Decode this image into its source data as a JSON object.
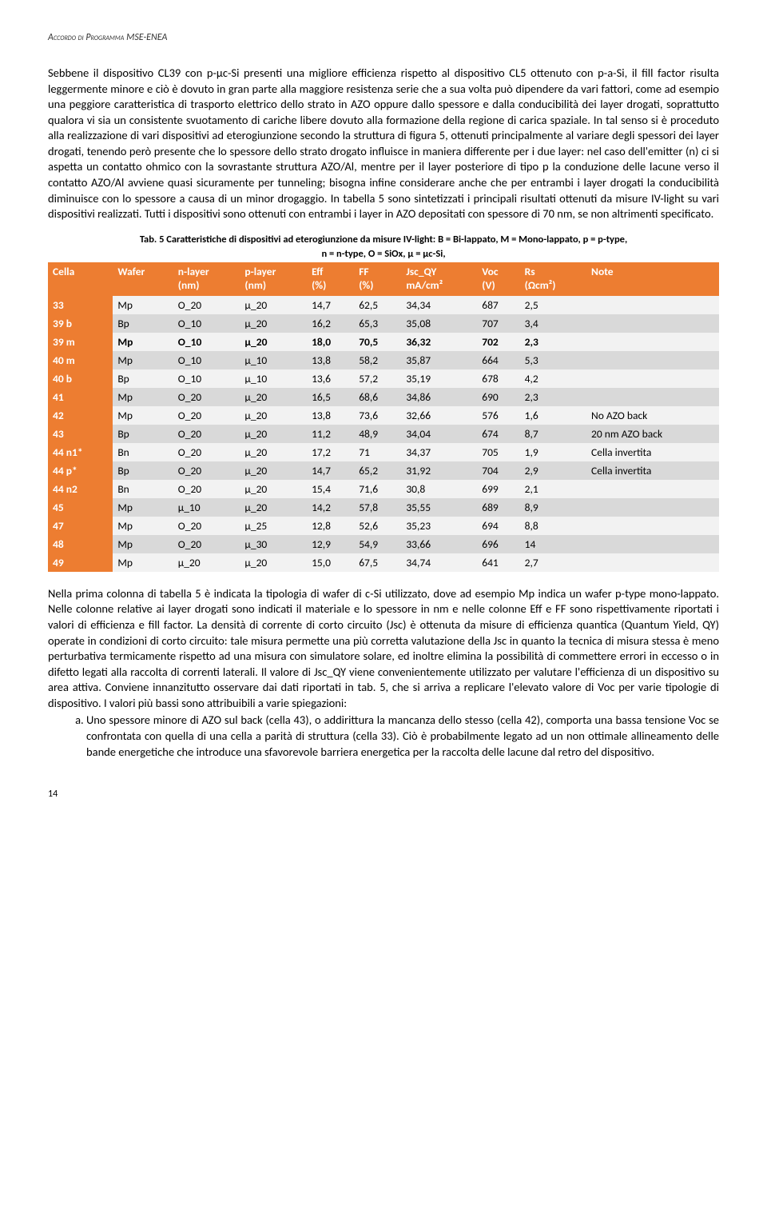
{
  "header": "Accordo di Programma MSE-ENEA",
  "para1": "Sebbene il dispositivo CL39 con p-μc-Si presenti una migliore efficienza rispetto al dispositivo CL5 ottenuto con p-a-Si, il fill factor risulta leggermente minore e ciò è dovuto in gran parte alla maggiore resistenza serie che a sua volta può dipendere da vari fattori, come ad esempio una peggiore caratteristica di trasporto elettrico dello strato in AZO oppure dallo spessore e dalla conducibilità dei layer drogati, soprattutto qualora vi sia un consistente svuotamento di cariche libere dovuto alla formazione della regione di carica spaziale. In tal senso si è proceduto alla realizzazione di vari dispositivi ad eterogiunzione secondo la struttura di figura 5, ottenuti principalmente al variare degli spessori dei layer drogati, tenendo però presente che lo spessore dello strato drogato influisce in maniera differente per i due layer: nel caso dell'emitter (n) ci si aspetta un contatto ohmico con la sovrastante struttura AZO/Al, mentre per il layer posteriore di tipo p la conduzione delle lacune verso il contatto AZO/Al avviene quasi sicuramente per tunneling; bisogna infine considerare anche che per entrambi i layer drogati la conducibilità diminuisce con lo spessore a causa di un minor drogaggio. In tabella 5 sono sintetizzati i principali risultati ottenuti da misure IV-light su vari dispositivi realizzati. Tutti i dispositivi sono ottenuti con entrambi i layer in AZO depositati con spessore di 70 nm, se non altrimenti specificato.",
  "tableCaption1": "Tab. 5 Caratteristiche di dispositivi ad eterogiunzione da misure IV-light: B = Bi-lappato, M = Mono-lappato, p = p-type,",
  "tableCaption2": "n = n-type, O = SiOx, μ = μc-Si,",
  "table": {
    "headerBg": "#ed7d31",
    "stripeLight": "#f2f2f2",
    "stripeDark": "#d9d9d9",
    "columns": [
      "Cella",
      "Wafer",
      "n-layer\n(nm)",
      "p-layer\n(nm)",
      "Eff\n(%)",
      "FF\n(%)",
      "Jsc_QY\nmA/cm²",
      "Voc\n(V)",
      "Rs\n(Ωcm²)",
      "Note"
    ],
    "colHeaders": [
      {
        "l1": "Cella",
        "l2": ""
      },
      {
        "l1": "Wafer",
        "l2": ""
      },
      {
        "l1": "n-layer",
        "l2": "(nm)"
      },
      {
        "l1": "p-layer",
        "l2": "(nm)"
      },
      {
        "l1": "Eff",
        "l2": "(%)"
      },
      {
        "l1": "FF",
        "l2": "(%)"
      },
      {
        "l1": "Jsc_QY",
        "l2": "mA/cm²"
      },
      {
        "l1": "Voc",
        "l2": "(V)"
      },
      {
        "l1": "Rs",
        "l2": "(Ωcm²)"
      },
      {
        "l1": "Note",
        "l2": ""
      }
    ],
    "rows": [
      {
        "cells": [
          "33",
          "Mp",
          "O_20",
          "μ_20",
          "14,7",
          "62,5",
          "34,34",
          "687",
          "2,5",
          ""
        ],
        "bold": false
      },
      {
        "cells": [
          "39 b",
          "Bp",
          "O_10",
          "μ_20",
          "16,2",
          "65,3",
          "35,08",
          "707",
          "3,4",
          ""
        ],
        "bold": false
      },
      {
        "cells": [
          "39 m",
          "Mp",
          "O_10",
          "μ_20",
          "18,0",
          "70,5",
          "36,32",
          "702",
          "2,3",
          ""
        ],
        "bold": true
      },
      {
        "cells": [
          "40 m",
          "Mp",
          "O_10",
          "μ_10",
          "13,8",
          "58,2",
          "35,87",
          "664",
          "5,3",
          ""
        ],
        "bold": false
      },
      {
        "cells": [
          "40 b",
          "Bp",
          "O_10",
          "μ_10",
          "13,6",
          "57,2",
          "35,19",
          "678",
          "4,2",
          ""
        ],
        "bold": false
      },
      {
        "cells": [
          "41",
          "Mp",
          "O_20",
          "μ_20",
          "16,5",
          "68,6",
          "34,86",
          "690",
          "2,3",
          ""
        ],
        "bold": false
      },
      {
        "cells": [
          "42",
          "Mp",
          "O_20",
          "μ_20",
          "13,8",
          "73,6",
          "32,66",
          "576",
          "1,6",
          "No AZO back"
        ],
        "bold": false
      },
      {
        "cells": [
          "43",
          "Bp",
          "O_20",
          "μ_20",
          "11,2",
          "48,9",
          "34,04",
          "674",
          "8,7",
          "20 nm AZO back"
        ],
        "bold": false
      },
      {
        "cells": [
          "44 n1*",
          "Bn",
          "O_20",
          "μ_20",
          "17,2",
          "71",
          "34,37",
          "705",
          "1,9",
          "Cella invertita"
        ],
        "bold": false
      },
      {
        "cells": [
          "44 p*",
          "Bp",
          "O_20",
          "μ_20",
          "14,7",
          "65,2",
          "31,92",
          "704",
          "2,9",
          "Cella invertita"
        ],
        "bold": false
      },
      {
        "cells": [
          "44 n2",
          "Bn",
          "O_20",
          "μ_20",
          "15,4",
          "71,6",
          "30,8",
          "699",
          "2,1",
          ""
        ],
        "bold": false
      },
      {
        "cells": [
          "45",
          "Mp",
          "μ_10",
          "μ_20",
          "14,2",
          "57,8",
          "35,55",
          "689",
          "8,9",
          ""
        ],
        "bold": false
      },
      {
        "cells": [
          "47",
          "Mp",
          "O_20",
          "μ_25",
          "12,8",
          "52,6",
          "35,23",
          "694",
          "8,8",
          ""
        ],
        "bold": false
      },
      {
        "cells": [
          "48",
          "Mp",
          "O_20",
          "μ_30",
          "12,9",
          "54,9",
          "33,66",
          "696",
          "14",
          ""
        ],
        "bold": false
      },
      {
        "cells": [
          "49",
          "Mp",
          "μ_20",
          "μ_20",
          "15,0",
          "67,5",
          "34,74",
          "641",
          "2,7",
          ""
        ],
        "bold": false
      }
    ]
  },
  "para2": "Nella prima colonna di tabella 5 è indicata la tipologia di wafer di c-Si utilizzato, dove ad esempio Mp indica un wafer p-type mono-lappato. Nelle colonne relative ai layer drogati sono indicati il materiale e lo spessore in nm e nelle colonne Eff e FF sono rispettivamente riportati i valori di efficienza e fill factor. La densità di corrente di corto circuito (Jsc) è ottenuta da misure di efficienza quantica (Quantum Yield, QY) operate in condizioni di corto circuito: tale misura permette una più corretta valutazione della Jsc in quanto la tecnica di misura stessa è meno perturbativa termicamente rispetto ad una misura con simulatore solare, ed inoltre elimina la possibilità di commettere errori in eccesso o in difetto legati alla raccolta di correnti laterali. Il valore di Jsc_QY viene convenientemente utilizzato per valutare l'efficienza di un dispositivo su area attiva. Conviene innanzitutto osservare dai dati riportati in tab. 5, che si arriva a replicare l'elevato valore di Voc per varie tipologie di dispositivo. I valori più bassi sono attribuibili a varie spiegazioni:",
  "listItemA": "Uno spessore minore di AZO sul back (cella 43), o addirittura la mancanza dello stesso (cella 42), comporta una bassa tensione Voc se confrontata con quella di una cella a parità di struttura (cella 33). Ciò è probabilmente legato ad un non ottimale allineamento delle bande energetiche che introduce una sfavorevole barriera energetica per la raccolta delle lacune dal retro del dispositivo.",
  "pageNumber": "14"
}
